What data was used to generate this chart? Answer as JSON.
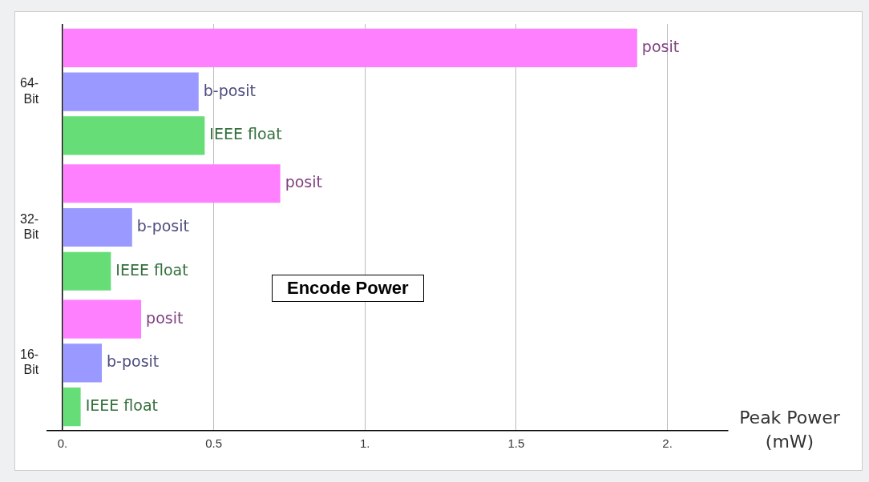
{
  "chart_data": {
    "type": "bar",
    "orientation": "horizontal",
    "title": "Encode Power",
    "xlabel": "Peak Power (mW)",
    "categories": [
      "64-Bit",
      "32-Bit",
      "16-Bit"
    ],
    "series": [
      {
        "name": "posit",
        "color": "#ff80ff",
        "values": [
          1.9,
          0.72,
          0.26
        ]
      },
      {
        "name": "b-posit",
        "color": "#9999ff",
        "values": [
          0.45,
          0.23,
          0.13
        ]
      },
      {
        "name": "IEEE float",
        "color": "#66dd77",
        "values": [
          0.47,
          0.16,
          0.06
        ]
      }
    ],
    "xlim": [
      -0.05,
      2.2
    ],
    "xticks": [
      {
        "value": 0,
        "label": "0."
      },
      0.5,
      {
        "value": 1,
        "label": "1."
      },
      1.5,
      {
        "value": 2,
        "label": "2."
      }
    ],
    "grid": "x",
    "legend": false
  }
}
